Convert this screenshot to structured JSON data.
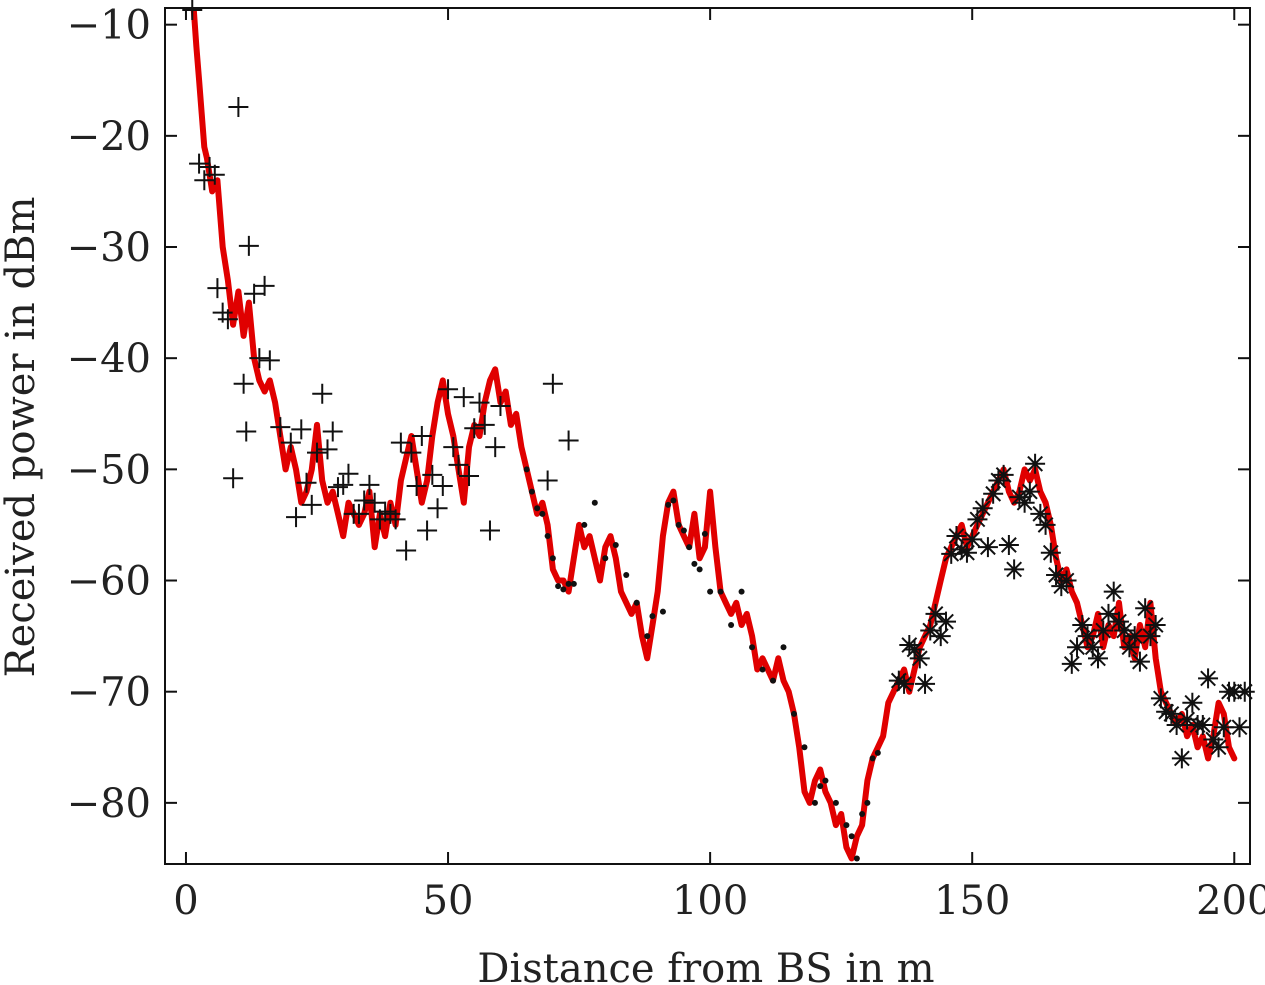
{
  "chart_data": {
    "type": "scatter",
    "title": "",
    "xlabel": "Distance from BS in m",
    "ylabel": "Received power in dBm",
    "xlim": [
      -4,
      203
    ],
    "ylim": [
      -85.5,
      -8.5
    ],
    "xticks": [
      0,
      50,
      100,
      150,
      200
    ],
    "yticks": [
      -10,
      -20,
      -30,
      -40,
      -50,
      -60,
      -70,
      -80
    ],
    "grid": false,
    "legend": "none",
    "colors": {
      "curve": "#e00000",
      "markers": "#111111",
      "axes": "#111111"
    },
    "series": [
      {
        "style": "line",
        "x": [
          1.5,
          2,
          2.5,
          3,
          3.5,
          4,
          4.5,
          5,
          6,
          7,
          8,
          9,
          10,
          11,
          12,
          13,
          14,
          15,
          16,
          17,
          18,
          19,
          20,
          21,
          22,
          23,
          24,
          25,
          26,
          27,
          28,
          29,
          30,
          31,
          32,
          33,
          34,
          35,
          36,
          37,
          38,
          39,
          40,
          41,
          42,
          43,
          44,
          45,
          46,
          47,
          48,
          49,
          50,
          51,
          52,
          53,
          54,
          55,
          56,
          57,
          58,
          59,
          60,
          61,
          62,
          63,
          64,
          65,
          66,
          67,
          68,
          69,
          70,
          71,
          72,
          73,
          74,
          75,
          76,
          77,
          78,
          79,
          80,
          81,
          82,
          83,
          84,
          85,
          86,
          87,
          88,
          89,
          90,
          91,
          92,
          93,
          94,
          95,
          96,
          97,
          98,
          99,
          100,
          101,
          102,
          103,
          104,
          105,
          106,
          107,
          108,
          109,
          110,
          111,
          112,
          113,
          114,
          115,
          116,
          117,
          118,
          119,
          120,
          121,
          122,
          123,
          124,
          125,
          126,
          127,
          128,
          129,
          130,
          131,
          132,
          133,
          134,
          135,
          136,
          137,
          138,
          139,
          140,
          141,
          142,
          143,
          144,
          145,
          146,
          147,
          148,
          149,
          150,
          151,
          152,
          153,
          154,
          155,
          156,
          157,
          158,
          159,
          160,
          161,
          162,
          163,
          164,
          165,
          166,
          167,
          168,
          169,
          170,
          171,
          172,
          173,
          174,
          175,
          176,
          177,
          178,
          179,
          180,
          181,
          182,
          183,
          184,
          185,
          186,
          187,
          188,
          189,
          190,
          191,
          192,
          193,
          194,
          195,
          196,
          197,
          198,
          199,
          200
        ],
        "y": [
          -8.5,
          -12,
          -15,
          -18,
          -21,
          -22,
          -23.5,
          -25,
          -24,
          -30,
          -33,
          -37,
          -34,
          -38,
          -35,
          -40,
          -42,
          -43,
          -42,
          -44,
          -47,
          -50,
          -48,
          -50,
          -53,
          -52,
          -50,
          -46,
          -51,
          -53,
          -52,
          -54,
          -56,
          -53,
          -54,
          -55,
          -54,
          -52,
          -57,
          -54,
          -56,
          -53,
          -55,
          -51,
          -49,
          -47,
          -50,
          -53,
          -51,
          -47,
          -44,
          -42,
          -45,
          -47,
          -50,
          -53,
          -48,
          -46,
          -47,
          -44,
          -42,
          -41,
          -44,
          -43,
          -46,
          -45,
          -48,
          -50,
          -52,
          -54,
          -53,
          -55,
          -59,
          -60,
          -60,
          -61,
          -58,
          -55,
          -57,
          -56,
          -58,
          -60,
          -57,
          -56,
          -58,
          -61,
          -62,
          -63,
          -62,
          -65,
          -67,
          -64,
          -61,
          -56,
          -53,
          -52,
          -55,
          -56,
          -57,
          -54,
          -58,
          -57,
          -52,
          -57,
          -61,
          -62,
          -63,
          -62,
          -64,
          -63,
          -65,
          -68,
          -67,
          -68,
          -69,
          -67,
          -69,
          -70,
          -72,
          -75,
          -79,
          -80,
          -78,
          -77,
          -79,
          -80,
          -82,
          -81,
          -84,
          -85,
          -83,
          -82,
          -78,
          -76,
          -75,
          -74,
          -71,
          -70,
          -69,
          -68,
          -70,
          -68,
          -66,
          -65,
          -64,
          -62,
          -60,
          -58,
          -57,
          -56,
          -55,
          -57,
          -56,
          -55,
          -54,
          -53,
          -52,
          -51,
          -50,
          -52,
          -53,
          -52,
          -50,
          -51,
          -50,
          -52,
          -53,
          -55,
          -58,
          -60,
          -59,
          -61,
          -62,
          -64,
          -66,
          -65,
          -63,
          -66,
          -64,
          -65,
          -62,
          -66,
          -65,
          -67,
          -64,
          -66,
          -62,
          -67,
          -70,
          -71,
          -72,
          -73,
          -72,
          -74,
          -73,
          -75,
          -74,
          -76,
          -74,
          -71,
          -72,
          -75,
          -76
        ]
      },
      {
        "style": "plus",
        "x": [
          1.2,
          2.5,
          3.5,
          4.5,
          5.5,
          6,
          7,
          8,
          9,
          10,
          11,
          11.5,
          12,
          13,
          14,
          15,
          16,
          18,
          20,
          21,
          22,
          23,
          24,
          25,
          26,
          27,
          28,
          29,
          30,
          31,
          32,
          33,
          34,
          35,
          36,
          37,
          38,
          39,
          40,
          41,
          42,
          43,
          44,
          45,
          46,
          47,
          48,
          49,
          50,
          51,
          52,
          53,
          54,
          55,
          56,
          57,
          58,
          59,
          60,
          69,
          70,
          73
        ],
        "y": [
          -8.5,
          -22.5,
          -24,
          -22.8,
          -23.5,
          -33.7,
          -35.9,
          -36.5,
          -50.8,
          -17.4,
          -42.3,
          -46.6,
          -29.9,
          -34.2,
          -40,
          -33.5,
          -40.2,
          -46.2,
          -47.6,
          -54.3,
          -46.4,
          -51.2,
          -53.2,
          -48.5,
          -43.2,
          -48.2,
          -46.6,
          -51.6,
          -51.4,
          -50.4,
          -54,
          -54,
          -52.8,
          -51.4,
          -53,
          -54.5,
          -53.8,
          -54,
          -54.5,
          -47.6,
          -57.3,
          -48.5,
          -51.5,
          -47,
          -55.5,
          -50.5,
          -53.5,
          -51.5,
          -42.8,
          -48,
          -49.6,
          -43.5,
          -50.6,
          -46.3,
          -44,
          -46,
          -55.5,
          -48,
          -44.3,
          -51,
          -42.3,
          -47.4
        ]
      },
      {
        "style": "dot",
        "x": [
          65,
          66,
          67,
          68,
          69,
          70,
          71,
          72,
          73,
          74,
          76,
          78,
          80,
          82,
          84,
          86,
          88,
          89,
          91,
          92,
          93,
          94,
          95,
          96,
          97,
          98,
          99,
          100,
          102,
          104,
          106,
          108,
          110,
          112,
          114,
          116,
          118,
          120,
          121,
          122,
          124,
          126,
          127,
          128,
          129,
          130,
          131,
          132
        ],
        "y": [
          -50,
          -52,
          -53.5,
          -54,
          -56,
          -58,
          -60.5,
          -60.8,
          -60.3,
          -60.3,
          -55,
          -53,
          -58,
          -56.8,
          -59.5,
          -62,
          -65,
          -63.2,
          -62.8,
          -53.2,
          -52.8,
          -55,
          -55.5,
          -57,
          -58.5,
          -59,
          -55.8,
          -61,
          -61,
          -64,
          -61,
          -66,
          -68,
          -69,
          -66,
          -72,
          -75,
          -80,
          -78.5,
          -78,
          -80,
          -82,
          -83,
          -85,
          -81,
          -80,
          -76,
          -75.5
        ]
      },
      {
        "style": "asterisk",
        "x": [
          136,
          137,
          138,
          139,
          140,
          141,
          142,
          143,
          144,
          145,
          146,
          147,
          148,
          149,
          150,
          151,
          152,
          153,
          154,
          155,
          156,
          157,
          158,
          159,
          160,
          161,
          162,
          163,
          164,
          165,
          166,
          167,
          168,
          169,
          170,
          171,
          172,
          173,
          174,
          175,
          176,
          177,
          178,
          179,
          180,
          181,
          182,
          183,
          184,
          185,
          186,
          187,
          188,
          189,
          190,
          191,
          192,
          193,
          194,
          195,
          196,
          197,
          198,
          199,
          200,
          201,
          202
        ],
        "y": [
          -69,
          -69.3,
          -65.8,
          -66.2,
          -67,
          -69.3,
          -64.5,
          -63,
          -65,
          -63.7,
          -57.6,
          -56,
          -57.2,
          -57.5,
          -56.3,
          -54.5,
          -53.5,
          -57,
          -52.2,
          -51,
          -50.5,
          -56.8,
          -59,
          -52.5,
          -53,
          -52,
          -49.5,
          -54,
          -55,
          -57.5,
          -59.5,
          -60.5,
          -60,
          -67.5,
          -66,
          -64,
          -65,
          -66,
          -67,
          -64.5,
          -63,
          -61,
          -63.7,
          -64.5,
          -66,
          -65,
          -67.3,
          -62.5,
          -65,
          -64,
          -70.6,
          -71.8,
          -72,
          -73,
          -76,
          -72.5,
          -71,
          -73,
          -73,
          -68.8,
          -74.3,
          -75,
          -73.2,
          -70,
          -70,
          -73.2,
          -70
        ]
      }
    ]
  }
}
